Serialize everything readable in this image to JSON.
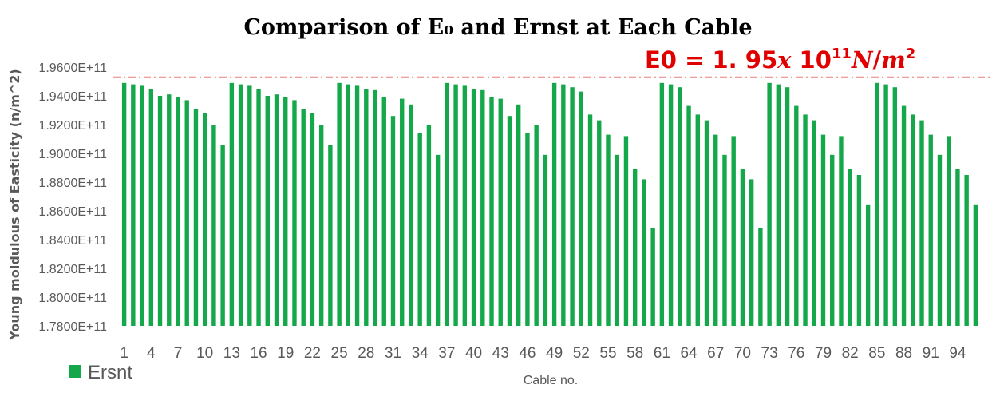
{
  "chart_data": {
    "type": "bar",
    "title": "Comparison of E₀ and Ernst at Each Cable",
    "xlabel": "Cable no.",
    "ylabel": "Young moldulous of Easticity (n/m^2)",
    "ylim": [
      178000000000,
      196000000000
    ],
    "ytick_labels": [
      "1.7800E+11",
      "1.8000E+11",
      "1.8200E+11",
      "1.8400E+11",
      "1.8600E+11",
      "1.8800E+11",
      "1.9000E+11",
      "1.9200E+11",
      "1.9400E+11",
      "1.9600E+11"
    ],
    "categories": [
      1,
      2,
      3,
      4,
      5,
      6,
      7,
      8,
      9,
      10,
      11,
      12,
      13,
      14,
      15,
      16,
      17,
      18,
      19,
      20,
      21,
      22,
      23,
      24,
      25,
      26,
      27,
      28,
      29,
      30,
      31,
      32,
      33,
      34,
      35,
      36,
      37,
      38,
      39,
      40,
      41,
      42,
      43,
      44,
      45,
      46,
      47,
      48,
      49,
      50,
      51,
      52,
      53,
      54,
      55,
      56,
      57,
      58,
      59,
      60,
      61,
      62,
      63,
      64,
      65,
      66,
      67,
      68,
      69,
      70,
      71,
      72,
      73,
      74,
      75,
      76,
      77,
      78,
      79,
      80,
      81,
      82,
      83,
      84,
      85,
      86,
      87,
      88,
      89,
      90,
      91,
      92,
      93,
      94,
      95,
      96
    ],
    "x_tick_labels": [
      "1",
      "4",
      "7",
      "10",
      "13",
      "16",
      "19",
      "22",
      "25",
      "28",
      "31",
      "34",
      "37",
      "40",
      "43",
      "46",
      "49",
      "52",
      "55",
      "58",
      "61",
      "64",
      "67",
      "70",
      "73",
      "76",
      "79",
      "82",
      "85",
      "88",
      "91",
      "94"
    ],
    "grid": false,
    "legend": "bottom-left",
    "series": [
      {
        "name": "Ersnt",
        "color": "#14a84a",
        "values": [
          194900000000,
          194800000000,
          194700000000,
          194500000000,
          194000000000,
          194100000000,
          193900000000,
          193700000000,
          193100000000,
          192800000000,
          192000000000,
          190600000000,
          194900000000,
          194800000000,
          194700000000,
          194500000000,
          194000000000,
          194100000000,
          193900000000,
          193700000000,
          193100000000,
          192800000000,
          192000000000,
          190600000000,
          194900000000,
          194800000000,
          194700000000,
          194500000000,
          194400000000,
          193900000000,
          192600000000,
          193800000000,
          193400000000,
          191400000000,
          192000000000,
          189900000000,
          194900000000,
          194800000000,
          194700000000,
          194500000000,
          194400000000,
          193900000000,
          193800000000,
          192600000000,
          193400000000,
          191400000000,
          192000000000,
          189900000000,
          194900000000,
          194800000000,
          194600000000,
          194300000000,
          192700000000,
          192300000000,
          191300000000,
          189900000000,
          191200000000,
          188900000000,
          188200000000,
          184800000000,
          194900000000,
          194800000000,
          194600000000,
          193300000000,
          192700000000,
          192300000000,
          191300000000,
          189900000000,
          191200000000,
          188900000000,
          188200000000,
          184800000000,
          194900000000,
          194800000000,
          194600000000,
          193300000000,
          192700000000,
          192300000000,
          191300000000,
          189900000000,
          191200000000,
          188900000000,
          188500000000,
          186400000000,
          194900000000,
          194800000000,
          194600000000,
          193300000000,
          192700000000,
          192300000000,
          191300000000,
          189900000000,
          191200000000,
          188900000000,
          188500000000,
          186400000000
        ]
      }
    ],
    "reference_line": {
      "value": 195300000000,
      "color": "#d00000",
      "label_parts": [
        "E0 = 1. 95",
        "x",
        " 10",
        "11",
        "N",
        "/",
        "m",
        "2"
      ]
    }
  }
}
